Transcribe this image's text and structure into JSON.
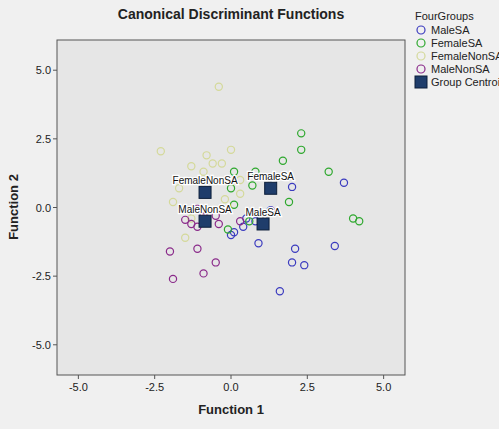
{
  "chart_data": {
    "type": "scatter",
    "title": "Canonical Discriminant Functions",
    "x_label": "Function 1",
    "y_label": "Function 2",
    "legend": "right",
    "legend_title": "FourGroups",
    "grid": false,
    "xlim": [
      -5.7,
      5.7
    ],
    "ylim": [
      -6.1,
      6.1
    ],
    "xticks": [
      {
        "value": -5,
        "label": "-5.0"
      },
      {
        "value": -2.5,
        "label": "-2.5"
      },
      {
        "value": 0,
        "label": "0.0"
      },
      {
        "value": 2.5,
        "label": "2.5"
      },
      {
        "value": 5,
        "label": "5.0"
      }
    ],
    "yticks": [
      {
        "value": -5,
        "label": "-5.0"
      },
      {
        "value": -2.5,
        "label": "-2.5"
      },
      {
        "value": 0,
        "label": "0.0"
      },
      {
        "value": 2.5,
        "label": "2.5"
      },
      {
        "value": 5,
        "label": "5.0"
      }
    ],
    "series": [
      {
        "name": "MaleSA",
        "color": "#3b3bbf",
        "marker": "circle",
        "x": [
          2.0,
          3.7,
          0.5,
          0.8,
          0.4,
          0.1,
          2.1,
          3.4,
          2.0,
          2.4,
          1.6,
          0.9,
          0.0,
          1.3
        ],
        "values": [
          0.75,
          0.9,
          -0.4,
          -0.5,
          -0.7,
          -0.9,
          -1.5,
          -1.4,
          -2.0,
          -2.1,
          -3.05,
          -1.3,
          -1.0,
          -0.1
        ]
      },
      {
        "name": "FemaleSA",
        "color": "#2ea82e",
        "marker": "circle",
        "x": [
          2.3,
          1.7,
          2.3,
          3.2,
          0.8,
          0.1,
          0.7,
          0.0,
          1.9,
          4.0,
          4.2,
          0.1,
          0.6,
          -0.1
        ],
        "values": [
          2.7,
          1.7,
          2.1,
          1.3,
          1.3,
          1.3,
          0.8,
          0.7,
          0.2,
          -0.4,
          -0.5,
          0.1,
          -0.5,
          -0.8
        ]
      },
      {
        "name": "FemaleNonSA",
        "color": "#d4d99a",
        "marker": "circle",
        "x": [
          -0.4,
          -2.3,
          -0.8,
          -0.6,
          -0.9,
          -0.3,
          0.0,
          -1.3,
          -1.7,
          -1.9,
          -1.3,
          -1.5,
          0.3,
          -0.2,
          0.3
        ],
        "values": [
          4.4,
          2.05,
          1.9,
          1.6,
          1.3,
          1.6,
          2.1,
          1.5,
          0.7,
          0.2,
          -0.4,
          -1.1,
          1.0,
          0.3,
          0.5
        ]
      },
      {
        "name": "MaleNonSA",
        "color": "#8a2a8a",
        "marker": "circle",
        "x": [
          -1.1,
          -0.9,
          -0.9,
          -0.5,
          -1.5,
          -1.1,
          -0.4,
          0.3,
          -2.0,
          -1.1,
          -0.5,
          -1.9,
          -0.9,
          -1.3
        ],
        "values": [
          -0.05,
          -0.1,
          -0.3,
          -0.3,
          -0.45,
          -0.7,
          -0.6,
          -0.5,
          -1.6,
          -1.5,
          -2.0,
          -2.6,
          -2.4,
          -0.6
        ]
      },
      {
        "name": "Group Centroid",
        "color": "#1f3d6b",
        "marker": "square",
        "x": [
          -0.85,
          -0.85,
          1.3,
          1.05
        ],
        "values": [
          0.55,
          -0.5,
          0.7,
          -0.6
        ],
        "labels": [
          "FemaleNonSA",
          "MaleNonSA",
          "FemaleSA",
          "MaleSA"
        ]
      }
    ]
  }
}
